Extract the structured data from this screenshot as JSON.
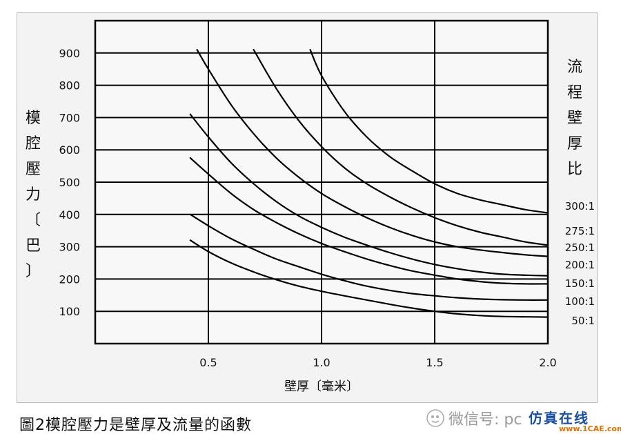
{
  "chart_data": {
    "type": "line",
    "title": "",
    "xlabel": "壁厚〔毫米〕",
    "ylabel": "模腔壓力〔巴〕",
    "xlim": [
      0,
      2.0
    ],
    "ylim": [
      0,
      1000
    ],
    "x_ticks": [
      "0.5",
      "1.0",
      "1.5",
      "2.0"
    ],
    "y_ticks": [
      "100",
      "200",
      "300",
      "400",
      "500",
      "600",
      "700",
      "800",
      "900"
    ],
    "grid": true,
    "legend_title": "流程壁厚比",
    "series": [
      {
        "name": "300:1",
        "x": [
          0.95,
          1.0,
          1.1,
          1.2,
          1.3,
          1.4,
          1.5,
          1.6,
          1.7,
          1.8,
          1.9,
          2.0
        ],
        "y": [
          910,
          830,
          720,
          640,
          580,
          535,
          495,
          465,
          445,
          430,
          415,
          405
        ]
      },
      {
        "name": "275:1",
        "x": [
          0.7,
          0.8,
          0.9,
          1.0,
          1.1,
          1.2,
          1.3,
          1.4,
          1.5,
          1.6,
          1.7,
          1.8,
          1.9,
          2.0
        ],
        "y": [
          910,
          790,
          690,
          610,
          545,
          495,
          455,
          420,
          390,
          365,
          345,
          330,
          315,
          305
        ]
      },
      {
        "name": "250:1",
        "x": [
          0.45,
          0.5,
          0.6,
          0.7,
          0.8,
          0.9,
          1.0,
          1.1,
          1.2,
          1.3,
          1.4,
          1.5,
          1.6,
          1.7,
          1.8,
          1.9,
          2.0
        ],
        "y": [
          910,
          850,
          740,
          650,
          575,
          515,
          465,
          425,
          390,
          360,
          335,
          315,
          300,
          290,
          282,
          275,
          270
        ]
      },
      {
        "name": "200:1",
        "x": [
          0.42,
          0.5,
          0.6,
          0.7,
          0.8,
          0.9,
          1.0,
          1.1,
          1.2,
          1.3,
          1.4,
          1.5,
          1.6,
          1.7,
          1.8,
          1.9,
          2.0
        ],
        "y": [
          710,
          640,
          560,
          495,
          440,
          395,
          360,
          330,
          305,
          282,
          262,
          245,
          232,
          222,
          215,
          212,
          210
        ]
      },
      {
        "name": "150:1",
        "x": [
          0.42,
          0.5,
          0.6,
          0.7,
          0.8,
          0.9,
          1.0,
          1.1,
          1.2,
          1.3,
          1.4,
          1.5,
          1.6,
          1.7,
          1.8,
          1.9,
          2.0
        ],
        "y": [
          575,
          525,
          465,
          415,
          375,
          340,
          310,
          285,
          262,
          242,
          225,
          212,
          200,
          192,
          187,
          185,
          185
        ]
      },
      {
        "name": "100:1",
        "x": [
          0.42,
          0.5,
          0.6,
          0.7,
          0.8,
          0.9,
          1.0,
          1.1,
          1.2,
          1.3,
          1.4,
          1.5,
          1.6,
          1.7,
          1.8,
          1.9,
          2.0
        ],
        "y": [
          400,
          365,
          325,
          292,
          262,
          238,
          215,
          195,
          178,
          165,
          155,
          148,
          142,
          138,
          136,
          135,
          135
        ]
      },
      {
        "name": "50:1",
        "x": [
          0.42,
          0.5,
          0.6,
          0.7,
          0.8,
          0.9,
          1.0,
          1.1,
          1.2,
          1.3,
          1.4,
          1.5,
          1.6,
          1.7,
          1.8,
          1.9,
          2.0
        ],
        "y": [
          320,
          285,
          250,
          222,
          198,
          178,
          162,
          148,
          135,
          122,
          110,
          100,
          92,
          87,
          84,
          83,
          82
        ]
      }
    ]
  },
  "caption": "圖2模腔壓力是壁厚及流量的函數",
  "watermark": {
    "text": "微信号: pc",
    "logo_top": "仿真在线",
    "logo_bottom": "www.1CAE.com"
  },
  "colors": {
    "line": "#000000",
    "background": "#f3f3f3",
    "watermark_logo": "#1a4fa0",
    "watermark_url": "#e07000"
  }
}
